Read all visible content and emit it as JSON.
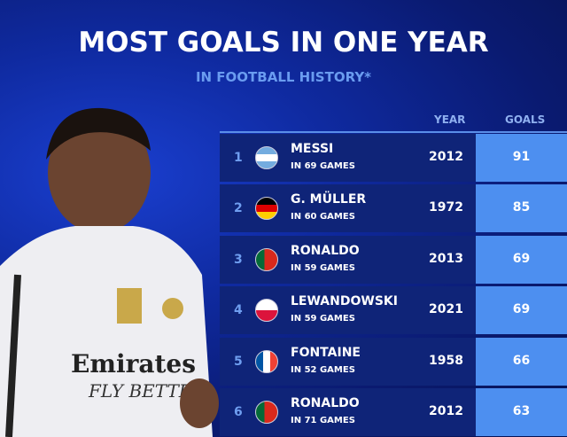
{
  "title": "MOST GOALS IN ONE YEAR",
  "subtitle": "IN FOOTBALL HISTORY*",
  "headers": {
    "year": "YEAR",
    "goals": "GOALS"
  },
  "jersey_logo": "Emirates FLY BETTER",
  "colors": {
    "background": "#0f2aa0",
    "row": "#0f2478",
    "goals_column": "#4d8ff0",
    "accent_text": "#6a9cf0"
  },
  "rows": [
    {
      "rank": "1",
      "flag": "argentina",
      "name": "MESSI",
      "games": "IN 69 GAMES",
      "year": "2012",
      "goals": "91"
    },
    {
      "rank": "2",
      "flag": "germany",
      "name": "G. MÜLLER",
      "games": "IN 60 GAMES",
      "year": "1972",
      "goals": "85"
    },
    {
      "rank": "3",
      "flag": "portugal",
      "name": "RONALDO",
      "games": "IN 59 GAMES",
      "year": "2013",
      "goals": "69"
    },
    {
      "rank": "4",
      "flag": "poland",
      "name": "LEWANDOWSKI",
      "games": "IN 59 GAMES",
      "year": "2021",
      "goals": "69"
    },
    {
      "rank": "5",
      "flag": "france",
      "name": "FONTAINE",
      "games": "IN 52 GAMES",
      "year": "1958",
      "goals": "66"
    },
    {
      "rank": "6",
      "flag": "portugal",
      "name": "RONALDO",
      "games": "IN 71 GAMES",
      "year": "2012",
      "goals": "63"
    }
  ]
}
